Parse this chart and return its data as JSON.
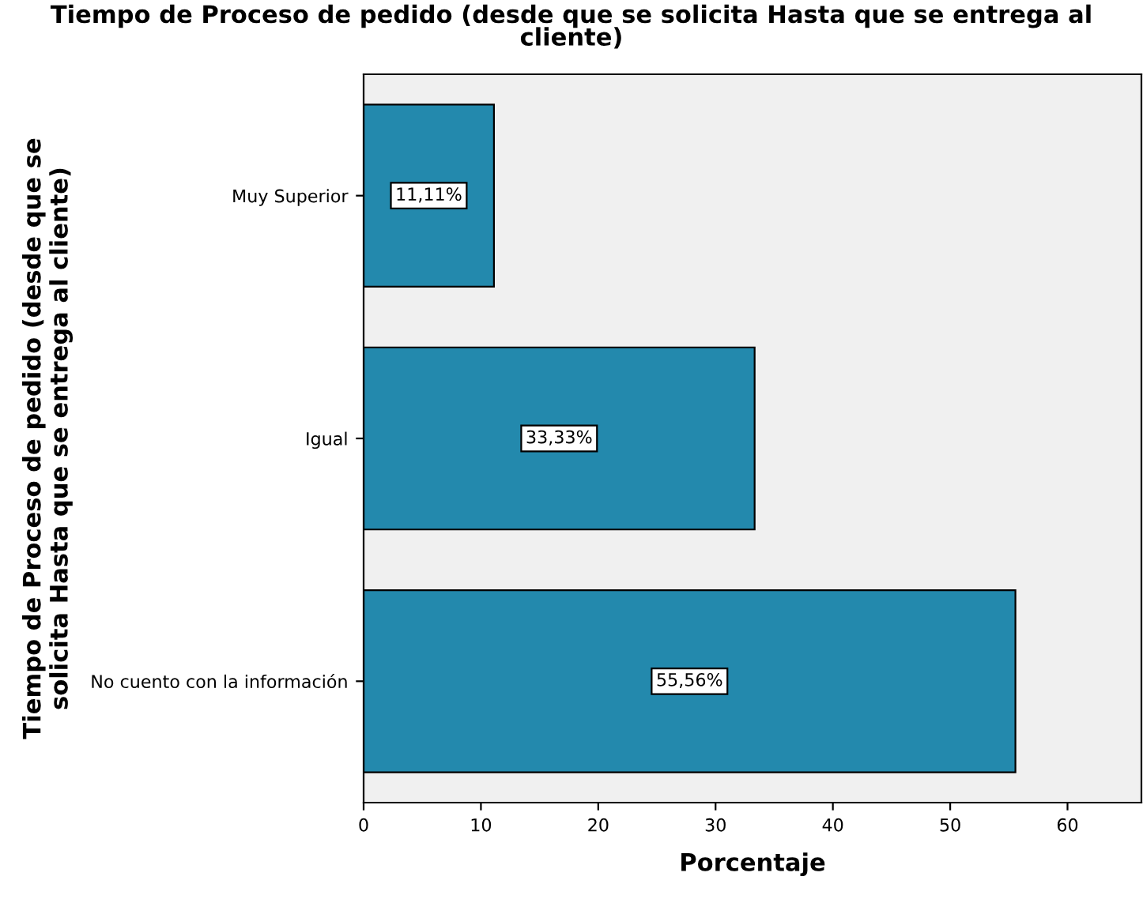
{
  "chart_data": {
    "type": "bar",
    "orientation": "horizontal",
    "title": "Tiempo de Proceso de pedido (desde que se solicita Hasta que se entrega al\ncliente)",
    "xlabel": "Porcentaje",
    "ylabel": "Tiempo de Proceso de pedido (desde que se\nsolicita Hasta que se entrega al cliente)",
    "categories": [
      "Muy Superior",
      "Igual",
      "No cuento con la información"
    ],
    "values": [
      11.11,
      33.33,
      55.56
    ],
    "value_labels": [
      "11,11%",
      "33,33%",
      "55,56%"
    ],
    "color": "#2389ad",
    "xlim": [
      0,
      66.3
    ],
    "xticks": [
      0,
      10,
      20,
      30,
      40,
      50,
      60
    ],
    "grid": false,
    "legend": false
  }
}
